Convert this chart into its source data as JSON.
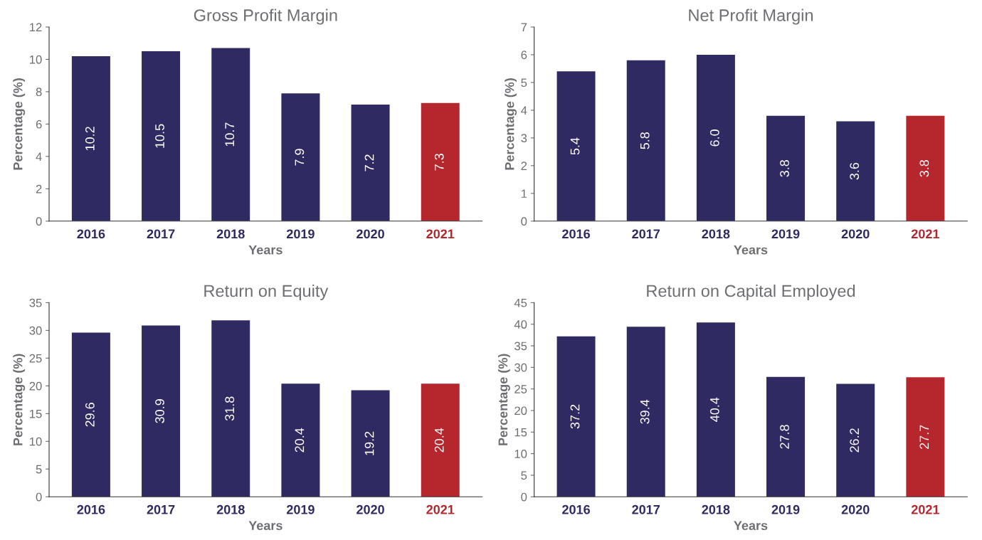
{
  "chart_data": [
    {
      "type": "bar",
      "title": "Gross Profit Margin",
      "xlabel": "Years",
      "ylabel": "Percentage (%)",
      "categories": [
        "2016",
        "2017",
        "2018",
        "2019",
        "2020",
        "2021"
      ],
      "values": [
        10.2,
        10.5,
        10.7,
        7.9,
        7.2,
        7.3
      ],
      "colors": [
        "#2f2a61",
        "#2f2a61",
        "#2f2a61",
        "#2f2a61",
        "#2f2a61",
        "#b5272d"
      ],
      "ylim": [
        0,
        12
      ],
      "yticks": [
        0,
        2,
        4,
        6,
        8,
        10,
        12
      ],
      "data_labels": true,
      "grid": false,
      "legend": false
    },
    {
      "type": "bar",
      "title": "Net Profit Margin",
      "xlabel": "Years",
      "ylabel": "Percentage (%)",
      "categories": [
        "2016",
        "2017",
        "2018",
        "2019",
        "2020",
        "2021"
      ],
      "values": [
        5.4,
        5.8,
        6.0,
        3.8,
        3.6,
        3.8
      ],
      "value_labels": [
        "5.4",
        "5.8",
        "6.0",
        "3.8",
        "3.6",
        "3.8"
      ],
      "colors": [
        "#2f2a61",
        "#2f2a61",
        "#2f2a61",
        "#2f2a61",
        "#2f2a61",
        "#b5272d"
      ],
      "ylim": [
        0,
        7
      ],
      "yticks": [
        0,
        1,
        2,
        3,
        4,
        5,
        6,
        7
      ],
      "grid": false,
      "legend": false
    },
    {
      "type": "bar",
      "title": "Return on Equity",
      "xlabel": "Years",
      "ylabel": "Percentage (%)",
      "categories": [
        "2016",
        "2017",
        "2018",
        "2019",
        "2020",
        "2021"
      ],
      "values": [
        29.6,
        30.9,
        31.8,
        20.4,
        19.2,
        20.4
      ],
      "colors": [
        "#2f2a61",
        "#2f2a61",
        "#2f2a61",
        "#2f2a61",
        "#2f2a61",
        "#b5272d"
      ],
      "ylim": [
        0,
        35
      ],
      "yticks": [
        0,
        5,
        10,
        15,
        20,
        25,
        30,
        35
      ],
      "data_labels": true,
      "grid": false,
      "legend": false
    },
    {
      "type": "bar",
      "title": "Return on Capital Employed",
      "xlabel": "Years",
      "ylabel": "Percentage (%)",
      "categories": [
        "2016",
        "2017",
        "2018",
        "2019",
        "2020",
        "2021"
      ],
      "values": [
        37.2,
        39.4,
        40.4,
        27.8,
        26.2,
        27.7
      ],
      "colors": [
        "#2f2a61",
        "#2f2a61",
        "#2f2a61",
        "#2f2a61",
        "#2f2a61",
        "#b5272d"
      ],
      "ylim": [
        0,
        45
      ],
      "yticks": [
        0,
        5,
        10,
        15,
        20,
        25,
        30,
        35,
        40,
        45
      ],
      "data_labels": true,
      "grid": false,
      "legend": false
    }
  ]
}
